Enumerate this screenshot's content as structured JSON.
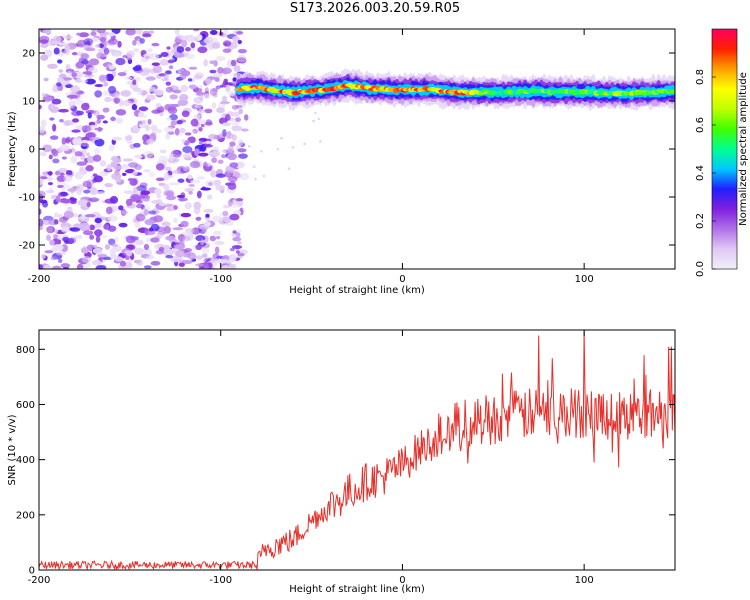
{
  "title": "S173.2026.003.20.59.R05",
  "colors": {
    "series_line": "#e8302a",
    "speckle": "#8a2be2",
    "axis": "#000000",
    "colorbar_stops": [
      "#f0f0f8",
      "#e0c8f4",
      "#b070e8",
      "#8020e0",
      "#2020ff",
      "#00c8ff",
      "#00ff90",
      "#40ff00",
      "#c0ff00",
      "#ffff00",
      "#ffa000",
      "#ff2000",
      "#ff0060"
    ]
  },
  "chart_data": [
    {
      "type": "heatmap",
      "xlabel": "Height of straight line (km)",
      "ylabel": "Frequency (Hz)",
      "xlim": [
        -200,
        150
      ],
      "ylim": [
        -25,
        25
      ],
      "xticks": [
        -200,
        -100,
        0,
        100
      ],
      "yticks": [
        -20,
        -10,
        0,
        10,
        20
      ],
      "colorbar": {
        "label": "Normalized spectral amplitude",
        "range": [
          0,
          1
        ],
        "ticks": [
          0.0,
          0.2,
          0.4,
          0.6,
          0.8
        ]
      },
      "noise_region_x": [
        -200,
        -87
      ],
      "signal_band": {
        "x_start": -90,
        "x_end": 150,
        "center_frequency": 12,
        "ridge": [
          {
            "x": -90,
            "freq": 12.5,
            "amp": 0.85
          },
          {
            "x": -80,
            "freq": 12.8,
            "amp": 0.9
          },
          {
            "x": -70,
            "freq": 12.2,
            "amp": 0.85
          },
          {
            "x": -60,
            "freq": 11.8,
            "amp": 0.9
          },
          {
            "x": -45,
            "freq": 12.3,
            "amp": 0.9
          },
          {
            "x": -30,
            "freq": 13.2,
            "amp": 0.9
          },
          {
            "x": -15,
            "freq": 12.5,
            "amp": 0.85
          },
          {
            "x": 0,
            "freq": 12.3,
            "amp": 0.9
          },
          {
            "x": 15,
            "freq": 12.5,
            "amp": 0.85
          },
          {
            "x": 30,
            "freq": 11.8,
            "amp": 0.95
          },
          {
            "x": 50,
            "freq": 11.8,
            "amp": 0.55
          },
          {
            "x": 75,
            "freq": 12.0,
            "amp": 0.65
          },
          {
            "x": 100,
            "freq": 11.8,
            "amp": 0.6
          },
          {
            "x": 125,
            "freq": 11.6,
            "amp": 0.7
          },
          {
            "x": 150,
            "freq": 12.0,
            "amp": 0.55
          }
        ]
      }
    },
    {
      "type": "line",
      "xlabel": "Height of straight line (km)",
      "ylabel": "SNR (10 * v/v)",
      "xlim": [
        -200,
        150
      ],
      "ylim": [
        0,
        870
      ],
      "xticks": [
        -200,
        -100,
        0,
        100
      ],
      "yticks": [
        0,
        200,
        400,
        600,
        800
      ],
      "trend": [
        {
          "x": -200,
          "y": 18
        },
        {
          "x": -80,
          "y": 18
        },
        {
          "x": -75,
          "y": 80
        },
        {
          "x": -60,
          "y": 110
        },
        {
          "x": -50,
          "y": 180
        },
        {
          "x": -40,
          "y": 230
        },
        {
          "x": -30,
          "y": 280
        },
        {
          "x": -20,
          "y": 320
        },
        {
          "x": -10,
          "y": 340
        },
        {
          "x": 0,
          "y": 380
        },
        {
          "x": 10,
          "y": 440
        },
        {
          "x": 20,
          "y": 480
        },
        {
          "x": 30,
          "y": 520
        },
        {
          "x": 40,
          "y": 540
        },
        {
          "x": 60,
          "y": 560
        },
        {
          "x": 80,
          "y": 570
        },
        {
          "x": 100,
          "y": 570
        },
        {
          "x": 125,
          "y": 560
        },
        {
          "x": 150,
          "y": 575
        }
      ],
      "peaks": [
        {
          "x": 75,
          "y": 850
        },
        {
          "x": 100,
          "y": 870
        },
        {
          "x": 148,
          "y": 810
        }
      ]
    }
  ]
}
